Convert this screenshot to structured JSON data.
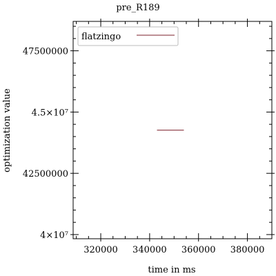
{
  "chart_data": {
    "type": "line",
    "title": "pre_R189",
    "xlabel": "time in ms",
    "ylabel": "optimization value",
    "xlim": [
      308700,
      390000
    ],
    "ylim": [
      39830000,
      48700000
    ],
    "x_ticks": [
      {
        "value": 320000,
        "label": "320000"
      },
      {
        "value": 340000,
        "label": "340000"
      },
      {
        "value": 360000,
        "label": "360000"
      },
      {
        "value": 380000,
        "label": "380000"
      }
    ],
    "x_minor_step": 5000,
    "y_ticks": [
      {
        "value": 40000000,
        "label": "4×10⁷"
      },
      {
        "value": 42500000,
        "label": "42500000"
      },
      {
        "value": 45000000,
        "label": "4.5×10⁷"
      },
      {
        "value": 47500000,
        "label": "47500000"
      }
    ],
    "y_minor_step": 500000,
    "grid": false,
    "legend_position": "top-left",
    "series": [
      {
        "name": "flatzingo",
        "color": "#7b1f2a",
        "x": [
          343000,
          354000
        ],
        "y": [
          44260000,
          44260000
        ]
      }
    ]
  }
}
